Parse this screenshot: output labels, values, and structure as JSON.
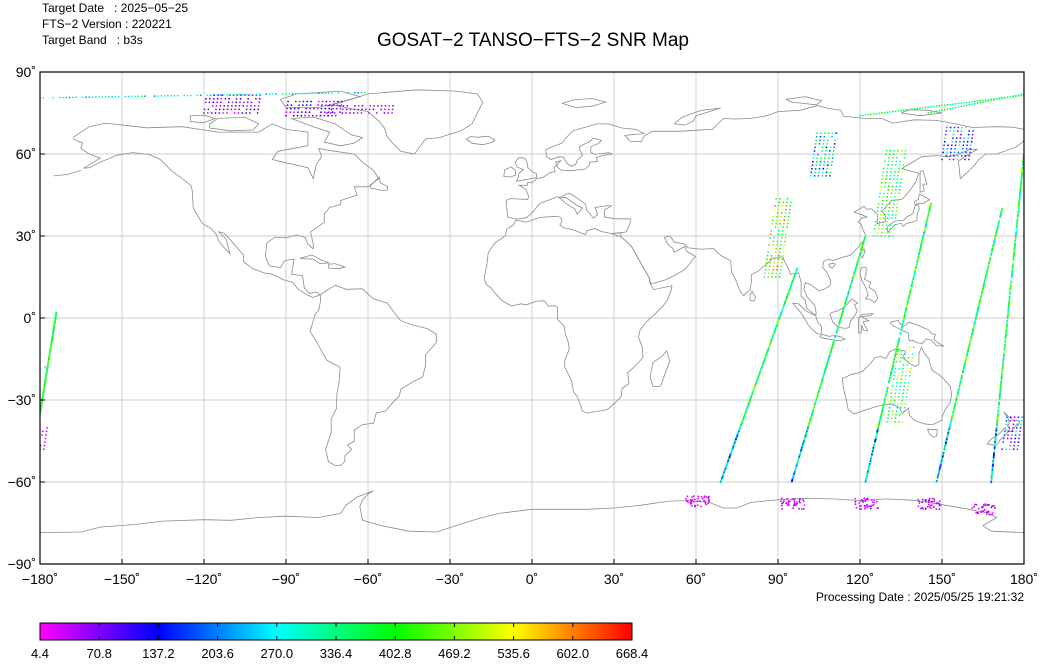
{
  "header": {
    "target_date_label": "Target Date   : 2025−05−25",
    "version_label": "FTS−2 Version : 220221",
    "band_label": "Target Band   : b3s"
  },
  "title": "GOSAT−2 TANSO−FTS−2 SNR Map",
  "processing_date": "Processing Date : 2025/05/25 19:21:32",
  "map": {
    "x_ticks": [
      "−180˚",
      "−150˚",
      "−120˚",
      "−90˚",
      "−60˚",
      "−30˚",
      "0˚",
      "30˚",
      "60˚",
      "90˚",
      "120˚",
      "150˚",
      "180˚"
    ],
    "y_ticks": [
      "90˚",
      "60˚",
      "30˚",
      "0˚",
      "−30˚",
      "−60˚",
      "−90˚"
    ],
    "lon_range": [
      -180,
      180
    ],
    "lat_range": [
      -90,
      90
    ],
    "grid": true,
    "coastline_color": "#8c8c8c"
  },
  "colorbar": {
    "min": 4.4,
    "max": 668.4,
    "ticks": [
      "4.4",
      "70.8",
      "137.2",
      "203.6",
      "270.0",
      "336.4",
      "402.8",
      "469.2",
      "535.6",
      "602.0",
      "668.4"
    ],
    "colors": [
      "#ff00ff",
      "#7f00ff",
      "#0000ff",
      "#007fff",
      "#00ffff",
      "#00ff7f",
      "#00ff00",
      "#7fff00",
      "#ffff00",
      "#ff7f00",
      "#ff0000"
    ]
  }
}
